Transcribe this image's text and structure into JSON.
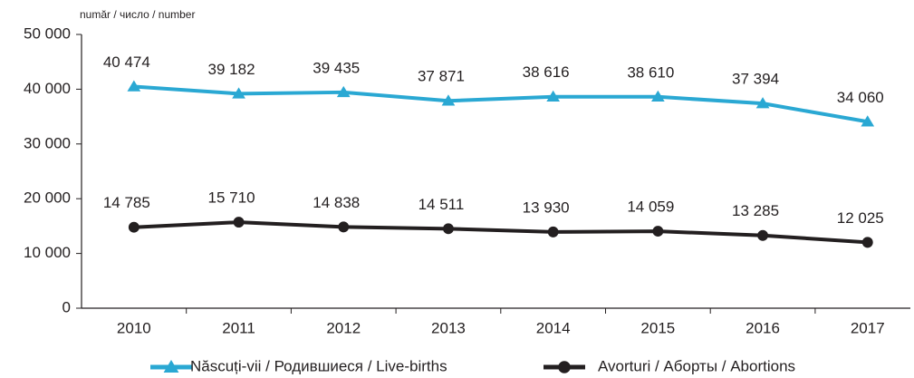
{
  "chart_data": {
    "type": "line",
    "y_label": "număr / число / number",
    "categories": [
      "2010",
      "2011",
      "2012",
      "2013",
      "2014",
      "2015",
      "2016",
      "2017"
    ],
    "series": [
      {
        "name": "Născuți-vii / Родившиеся / Live-births",
        "color": "#2aa8d3",
        "marker": "triangle",
        "values": [
          40474,
          39182,
          39435,
          37871,
          38616,
          38610,
          37394,
          34060
        ],
        "value_labels": [
          "40 474",
          "39 182",
          "39 435",
          "37 871",
          "38 616",
          "38 610",
          "37 394",
          "34 060"
        ]
      },
      {
        "name": "Avorturi / Аборты / Abortions",
        "color": "#231f20",
        "marker": "circle",
        "values": [
          14785,
          15710,
          14838,
          14511,
          13930,
          14059,
          13285,
          12025
        ],
        "value_labels": [
          "14 785",
          "15 710",
          "14 838",
          "14 511",
          "13 930",
          "14 059",
          "13 285",
          "12 025"
        ]
      }
    ],
    "ylim": [
      0,
      50000
    ],
    "yticks": [
      0,
      {
        "value": 10000,
        "label": "10 000"
      },
      {
        "value": 20000,
        "label": "20 000"
      },
      {
        "value": 30000,
        "label": "30 000"
      },
      {
        "value": 40000,
        "label": "40 000"
      },
      {
        "value": 50000,
        "label": "50 000"
      }
    ],
    "grid": false,
    "legend": "bottom"
  }
}
